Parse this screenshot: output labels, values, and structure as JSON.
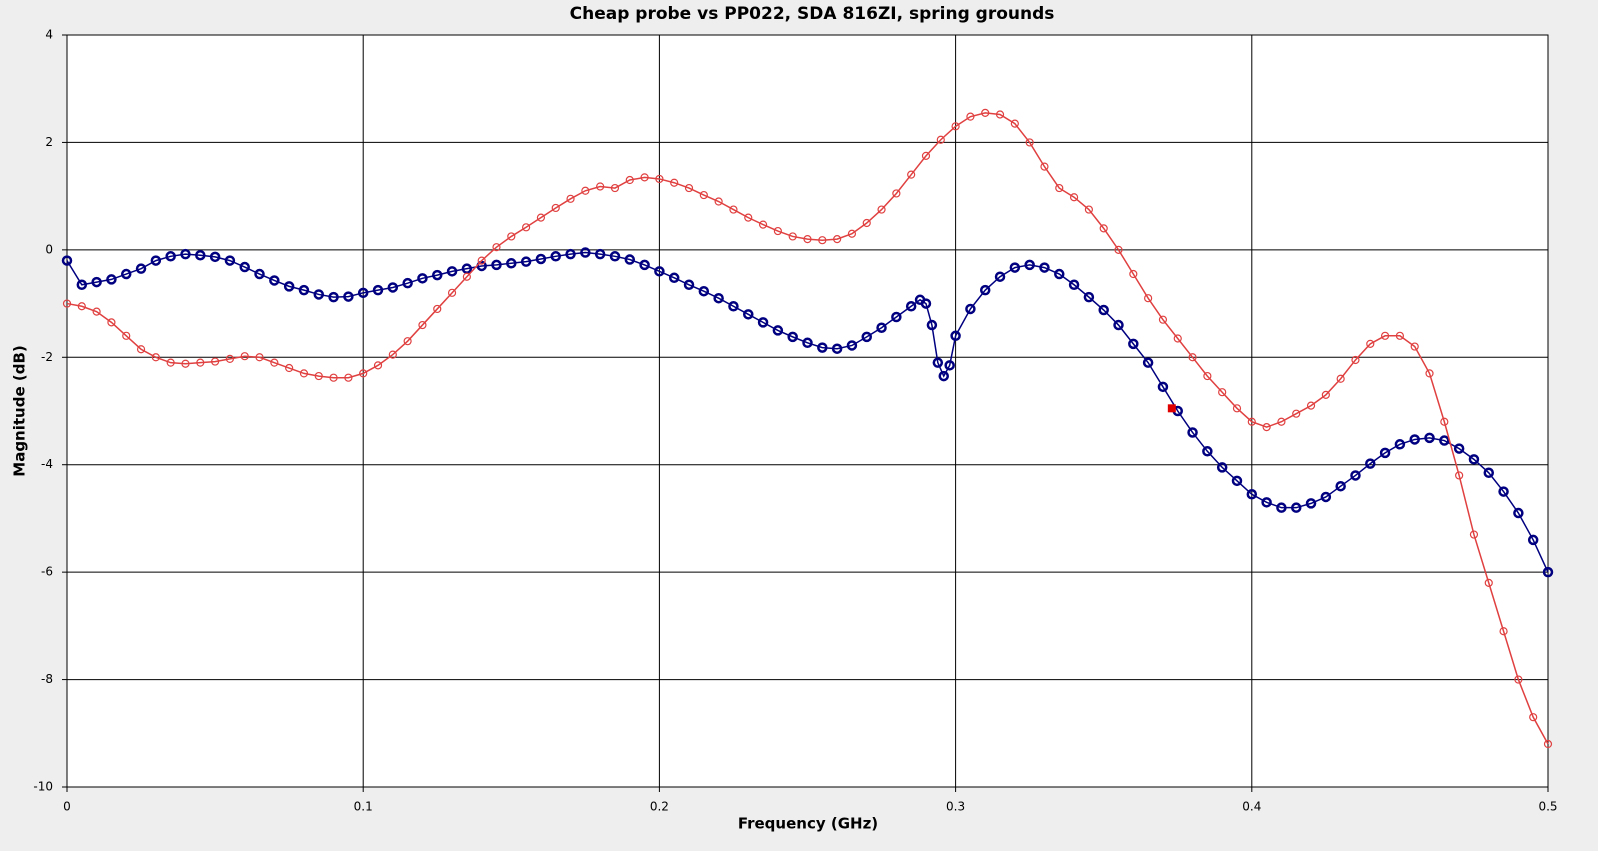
{
  "chart_data": {
    "type": "scatter",
    "title": "Cheap probe vs PP022, SDA 816ZI, spring grounds",
    "x_label": "Frequency (GHz)",
    "y_label": "Magnitude (dB)",
    "xlim": [
      0,
      0.5
    ],
    "ylim": [
      -10,
      4
    ],
    "xticks": [
      0,
      0.1,
      0.2,
      0.3,
      0.4,
      0.5
    ],
    "yticks": [
      -10,
      -8,
      -6,
      -4,
      -2,
      0,
      2,
      4
    ],
    "grid": true,
    "series": [
      {
        "color": "#000080",
        "x": [
          0,
          0.005,
          0.01,
          0.015,
          0.02,
          0.025,
          0.03,
          0.035,
          0.04,
          0.045,
          0.05,
          0.055,
          0.06,
          0.065,
          0.07,
          0.075,
          0.08,
          0.085,
          0.09,
          0.095,
          0.1,
          0.105,
          0.11,
          0.115,
          0.12,
          0.125,
          0.13,
          0.135,
          0.14,
          0.145,
          0.15,
          0.155,
          0.16,
          0.165,
          0.17,
          0.175,
          0.18,
          0.185,
          0.19,
          0.195,
          0.2,
          0.205,
          0.21,
          0.215,
          0.22,
          0.225,
          0.23,
          0.235,
          0.24,
          0.245,
          0.25,
          0.255,
          0.26,
          0.265,
          0.27,
          0.275,
          0.28,
          0.285,
          0.288,
          0.29,
          0.292,
          0.294,
          0.296,
          0.298,
          0.3,
          0.305,
          0.31,
          0.315,
          0.32,
          0.325,
          0.33,
          0.335,
          0.34,
          0.345,
          0.35,
          0.355,
          0.36,
          0.365,
          0.37,
          0.375,
          0.38,
          0.385,
          0.39,
          0.395,
          0.4,
          0.405,
          0.41,
          0.415,
          0.42,
          0.425,
          0.43,
          0.435,
          0.44,
          0.445,
          0.45,
          0.455,
          0.46,
          0.465,
          0.47,
          0.475,
          0.48,
          0.485,
          0.49,
          0.495,
          0.5
        ],
        "values": [
          -0.2,
          -0.65,
          -0.6,
          -0.55,
          -0.45,
          -0.35,
          -0.2,
          -0.12,
          -0.08,
          -0.1,
          -0.13,
          -0.2,
          -0.32,
          -0.45,
          -0.57,
          -0.68,
          -0.75,
          -0.83,
          -0.88,
          -0.87,
          -0.8,
          -0.75,
          -0.7,
          -0.62,
          -0.53,
          -0.47,
          -0.4,
          -0.35,
          -0.3,
          -0.28,
          -0.25,
          -0.22,
          -0.17,
          -0.12,
          -0.08,
          -0.05,
          -0.08,
          -0.12,
          -0.18,
          -0.28,
          -0.4,
          -0.52,
          -0.65,
          -0.77,
          -0.9,
          -1.05,
          -1.2,
          -1.35,
          -1.5,
          -1.62,
          -1.73,
          -1.82,
          -1.84,
          -1.78,
          -1.62,
          -1.45,
          -1.25,
          -1.05,
          -0.93,
          -1.0,
          -1.4,
          -2.1,
          -2.35,
          -2.15,
          -1.6,
          -1.1,
          -0.75,
          -0.5,
          -0.33,
          -0.28,
          -0.33,
          -0.45,
          -0.65,
          -0.88,
          -1.12,
          -1.4,
          -1.75,
          -2.1,
          -2.55,
          -3.0,
          -3.4,
          -3.75,
          -4.05,
          -4.3,
          -4.55,
          -4.7,
          -4.8,
          -4.8,
          -4.72,
          -4.6,
          -4.4,
          -4.2,
          -3.98,
          -3.78,
          -3.62,
          -3.53,
          -3.5,
          -3.55,
          -3.7,
          -3.9,
          -4.15,
          -4.5,
          -4.9,
          -5.4,
          -6.0
        ]
      },
      {
        "color": "#e04040",
        "x": [
          0,
          0.005,
          0.01,
          0.015,
          0.02,
          0.025,
          0.03,
          0.035,
          0.04,
          0.045,
          0.05,
          0.055,
          0.06,
          0.065,
          0.07,
          0.075,
          0.08,
          0.085,
          0.09,
          0.095,
          0.1,
          0.105,
          0.11,
          0.115,
          0.12,
          0.125,
          0.13,
          0.135,
          0.14,
          0.145,
          0.15,
          0.155,
          0.16,
          0.165,
          0.17,
          0.175,
          0.18,
          0.185,
          0.19,
          0.195,
          0.2,
          0.205,
          0.21,
          0.215,
          0.22,
          0.225,
          0.23,
          0.235,
          0.24,
          0.245,
          0.25,
          0.255,
          0.26,
          0.265,
          0.27,
          0.275,
          0.28,
          0.285,
          0.29,
          0.295,
          0.3,
          0.305,
          0.31,
          0.315,
          0.32,
          0.325,
          0.33,
          0.335,
          0.34,
          0.345,
          0.35,
          0.355,
          0.36,
          0.365,
          0.37,
          0.375,
          0.38,
          0.385,
          0.39,
          0.395,
          0.4,
          0.405,
          0.41,
          0.415,
          0.42,
          0.425,
          0.43,
          0.435,
          0.44,
          0.445,
          0.45,
          0.455,
          0.46,
          0.465,
          0.47,
          0.475,
          0.48,
          0.485,
          0.49,
          0.495,
          0.5
        ],
        "values": [
          -1.0,
          -1.05,
          -1.15,
          -1.35,
          -1.6,
          -1.85,
          -2.0,
          -2.1,
          -2.12,
          -2.1,
          -2.08,
          -2.03,
          -1.98,
          -2.0,
          -2.1,
          -2.2,
          -2.3,
          -2.35,
          -2.38,
          -2.38,
          -2.3,
          -2.15,
          -1.95,
          -1.7,
          -1.4,
          -1.1,
          -0.8,
          -0.5,
          -0.2,
          0.05,
          0.25,
          0.42,
          0.6,
          0.78,
          0.95,
          1.1,
          1.18,
          1.15,
          1.3,
          1.35,
          1.32,
          1.25,
          1.15,
          1.02,
          0.9,
          0.75,
          0.6,
          0.47,
          0.35,
          0.25,
          0.2,
          0.18,
          0.2,
          0.3,
          0.5,
          0.75,
          1.05,
          1.4,
          1.75,
          2.05,
          2.3,
          2.48,
          2.55,
          2.52,
          2.35,
          2.0,
          1.55,
          1.15,
          0.98,
          0.75,
          0.4,
          0.0,
          -0.45,
          -0.9,
          -1.3,
          -1.65,
          -2.0,
          -2.35,
          -2.65,
          -2.95,
          -3.2,
          -3.3,
          -3.2,
          -3.05,
          -2.9,
          -2.7,
          -2.4,
          -2.05,
          -1.75,
          -1.6,
          -1.6,
          -1.8,
          -2.3,
          -3.2,
          -4.2,
          -5.3,
          -6.2,
          -7.1,
          -8.0,
          -8.7,
          -9.2
        ]
      }
    ],
    "highlight": {
      "x": 0.373,
      "y": -2.95,
      "color": "#e00000"
    }
  }
}
